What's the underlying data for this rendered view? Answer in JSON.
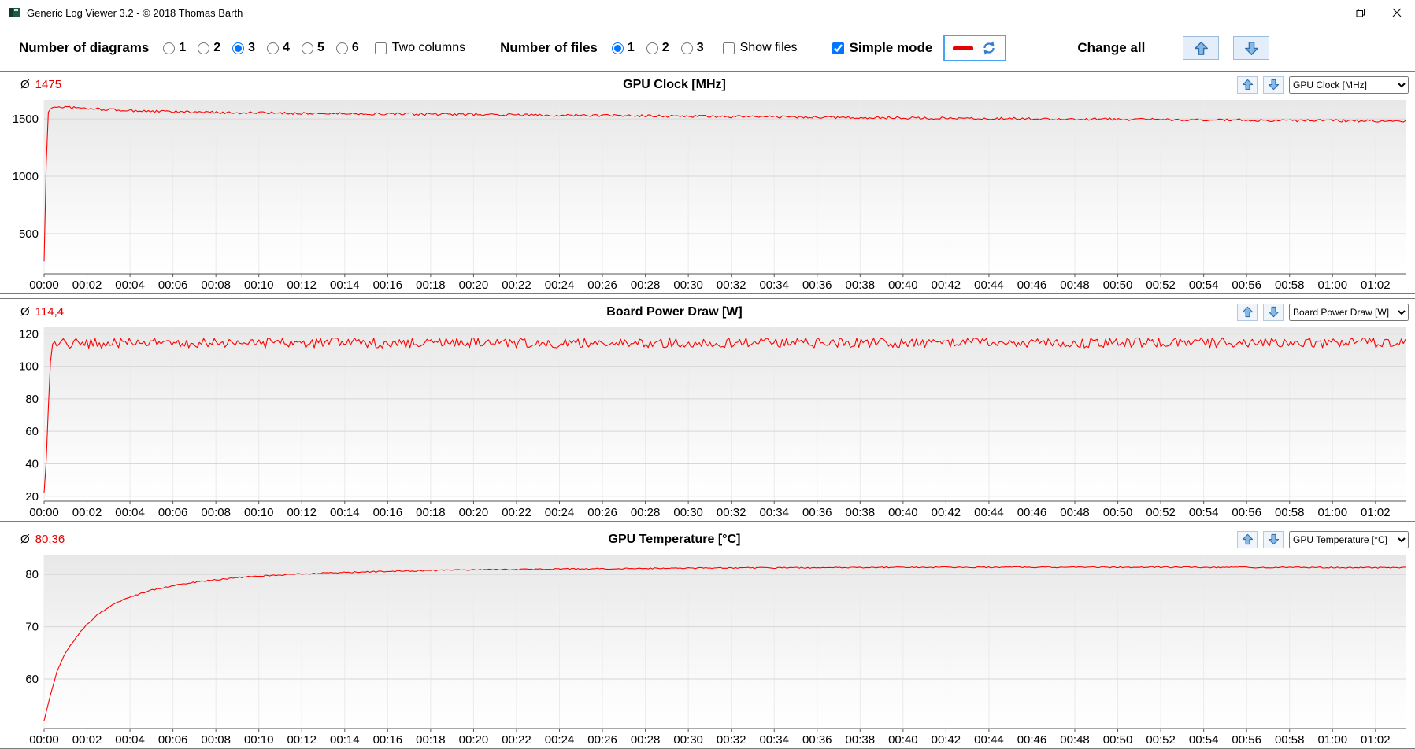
{
  "window": {
    "title": "Generic Log Viewer 3.2 - © 2018 Thomas Barth"
  },
  "toolbar": {
    "diagrams_label": "Number of diagrams",
    "diagram_options": [
      {
        "label": "1",
        "selected": false
      },
      {
        "label": "2",
        "selected": false
      },
      {
        "label": "3",
        "selected": true
      },
      {
        "label": "4",
        "selected": false
      },
      {
        "label": "5",
        "selected": false
      },
      {
        "label": "6",
        "selected": false
      }
    ],
    "two_columns": {
      "label": "Two columns",
      "checked": false
    },
    "files_label": "Number of files",
    "file_options": [
      {
        "label": "1",
        "selected": true
      },
      {
        "label": "2",
        "selected": false
      },
      {
        "label": "3",
        "selected": false
      }
    ],
    "show_files": {
      "label": "Show files",
      "checked": false
    },
    "simple_mode": {
      "label": "Simple mode",
      "checked": true
    },
    "change_all_label": "Change all"
  },
  "labels": {
    "avg_symbol": "Ø"
  },
  "colors": {
    "series": "#ff0000",
    "average_value": "#e30000",
    "arrow_fill": "#85b9e8",
    "arrow_stroke": "#2f6fae",
    "line_color_swatch": "#e80000",
    "refresh_blue": "#2f7fd6"
  },
  "icons": {
    "app": "green-logo",
    "minimize": "minimize-line",
    "maximize": "restore-squares",
    "close": "close-x",
    "line_color": "red-dash",
    "refresh": "swap-arrows",
    "move_up": "blue-arrow-up",
    "move_down": "blue-arrow-down"
  },
  "chart_data": [
    {
      "type": "line",
      "title": "GPU Clock [MHz]",
      "average": "1475",
      "selected_metric": "GPU Clock [MHz]",
      "ylim": [
        150,
        1665
      ],
      "y_ticks": [
        500,
        1000,
        1500
      ],
      "xlim": [
        0,
        63.4
      ],
      "x_ticks": [
        "00:00",
        "00:02",
        "00:04",
        "00:06",
        "00:08",
        "00:10",
        "00:12",
        "00:14",
        "00:16",
        "00:18",
        "00:20",
        "00:22",
        "00:24",
        "00:26",
        "00:28",
        "00:30",
        "00:32",
        "00:34",
        "00:36",
        "00:38",
        "00:40",
        "00:42",
        "00:44",
        "00:46",
        "00:48",
        "00:50",
        "00:52",
        "00:54",
        "00:56",
        "00:58",
        "01:00",
        "01:02"
      ],
      "grid": true,
      "legend": "none",
      "series": [
        {
          "name": "GPU Clock",
          "color": "#ff0000",
          "noise": 11,
          "keyframes": [
            [
              0,
              258
            ],
            [
              0.15,
              1540
            ],
            [
              0.35,
              1602
            ],
            [
              0.8,
              1605
            ],
            [
              1.5,
              1595
            ],
            [
              2.5,
              1585
            ],
            [
              4,
              1572
            ],
            [
              6,
              1562
            ],
            [
              8,
              1556
            ],
            [
              10,
              1552
            ],
            [
              13,
              1547
            ],
            [
              16,
              1543
            ],
            [
              20,
              1538
            ],
            [
              24,
              1532
            ],
            [
              28,
              1526
            ],
            [
              32,
              1520
            ],
            [
              36,
              1514
            ],
            [
              40,
              1509
            ],
            [
              44,
              1504
            ],
            [
              48,
              1499
            ],
            [
              52,
              1494
            ],
            [
              56,
              1489
            ],
            [
              60,
              1484
            ],
            [
              63.4,
              1481
            ]
          ]
        }
      ]
    },
    {
      "type": "line",
      "title": "Board Power Draw [W]",
      "average": "114,4",
      "selected_metric": "Board Power Draw [W]",
      "ylim": [
        17,
        124
      ],
      "y_ticks": [
        20,
        40,
        60,
        80,
        100,
        120
      ],
      "xlim": [
        0,
        63.4
      ],
      "x_ticks": [
        "00:00",
        "00:02",
        "00:04",
        "00:06",
        "00:08",
        "00:10",
        "00:12",
        "00:14",
        "00:16",
        "00:18",
        "00:20",
        "00:22",
        "00:24",
        "00:26",
        "00:28",
        "00:30",
        "00:32",
        "00:34",
        "00:36",
        "00:38",
        "00:40",
        "00:42",
        "00:44",
        "00:46",
        "00:48",
        "00:50",
        "00:52",
        "00:54",
        "00:56",
        "00:58",
        "01:00",
        "01:02"
      ],
      "grid": true,
      "legend": "none",
      "series": [
        {
          "name": "Board Power Draw",
          "color": "#ff0000",
          "noise": 3.1,
          "keyframes": [
            [
              0,
              22
            ],
            [
              0.12,
              45
            ],
            [
              0.25,
              95
            ],
            [
              0.4,
              112
            ],
            [
              0.7,
              114
            ],
            [
              5,
              114.2
            ],
            [
              15,
              114.4
            ],
            [
              30,
              114.5
            ],
            [
              45,
              114.4
            ],
            [
              63.4,
              114.6
            ]
          ]
        }
      ]
    },
    {
      "type": "line",
      "title": "GPU Temperature [°C]",
      "average": "80,36",
      "selected_metric": "GPU Temperature [°C]",
      "ylim": [
        50.5,
        83.8
      ],
      "y_ticks": [
        60,
        70,
        80
      ],
      "xlim": [
        0,
        63.4
      ],
      "x_ticks": [
        "00:00",
        "00:02",
        "00:04",
        "00:06",
        "00:08",
        "00:10",
        "00:12",
        "00:14",
        "00:16",
        "00:18",
        "00:20",
        "00:22",
        "00:24",
        "00:26",
        "00:28",
        "00:30",
        "00:32",
        "00:34",
        "00:36",
        "00:38",
        "00:40",
        "00:42",
        "00:44",
        "00:46",
        "00:48",
        "00:50",
        "00:52",
        "00:54",
        "00:56",
        "00:58",
        "01:00",
        "01:02"
      ],
      "grid": true,
      "legend": "none",
      "series": [
        {
          "name": "GPU Temperature",
          "color": "#ff0000",
          "noise": 0.12,
          "keyframes": [
            [
              0,
              52
            ],
            [
              0.3,
              57
            ],
            [
              0.6,
              61.5
            ],
            [
              1,
              65
            ],
            [
              1.5,
              68
            ],
            [
              2,
              70.5
            ],
            [
              2.5,
              72.3
            ],
            [
              3,
              73.7
            ],
            [
              3.5,
              74.8
            ],
            [
              4,
              75.7
            ],
            [
              5,
              77
            ],
            [
              6,
              77.9
            ],
            [
              7,
              78.5
            ],
            [
              8,
              79
            ],
            [
              9,
              79.4
            ],
            [
              10,
              79.7
            ],
            [
              12,
              80.1
            ],
            [
              14,
              80.4
            ],
            [
              16,
              80.6
            ],
            [
              18,
              80.75
            ],
            [
              20,
              80.9
            ],
            [
              24,
              81.05
            ],
            [
              28,
              81.15
            ],
            [
              32,
              81.25
            ],
            [
              38,
              81.35
            ],
            [
              45,
              81.4
            ],
            [
              52,
              81.4
            ],
            [
              58,
              81.35
            ],
            [
              63.4,
              81.3
            ]
          ]
        }
      ]
    }
  ]
}
